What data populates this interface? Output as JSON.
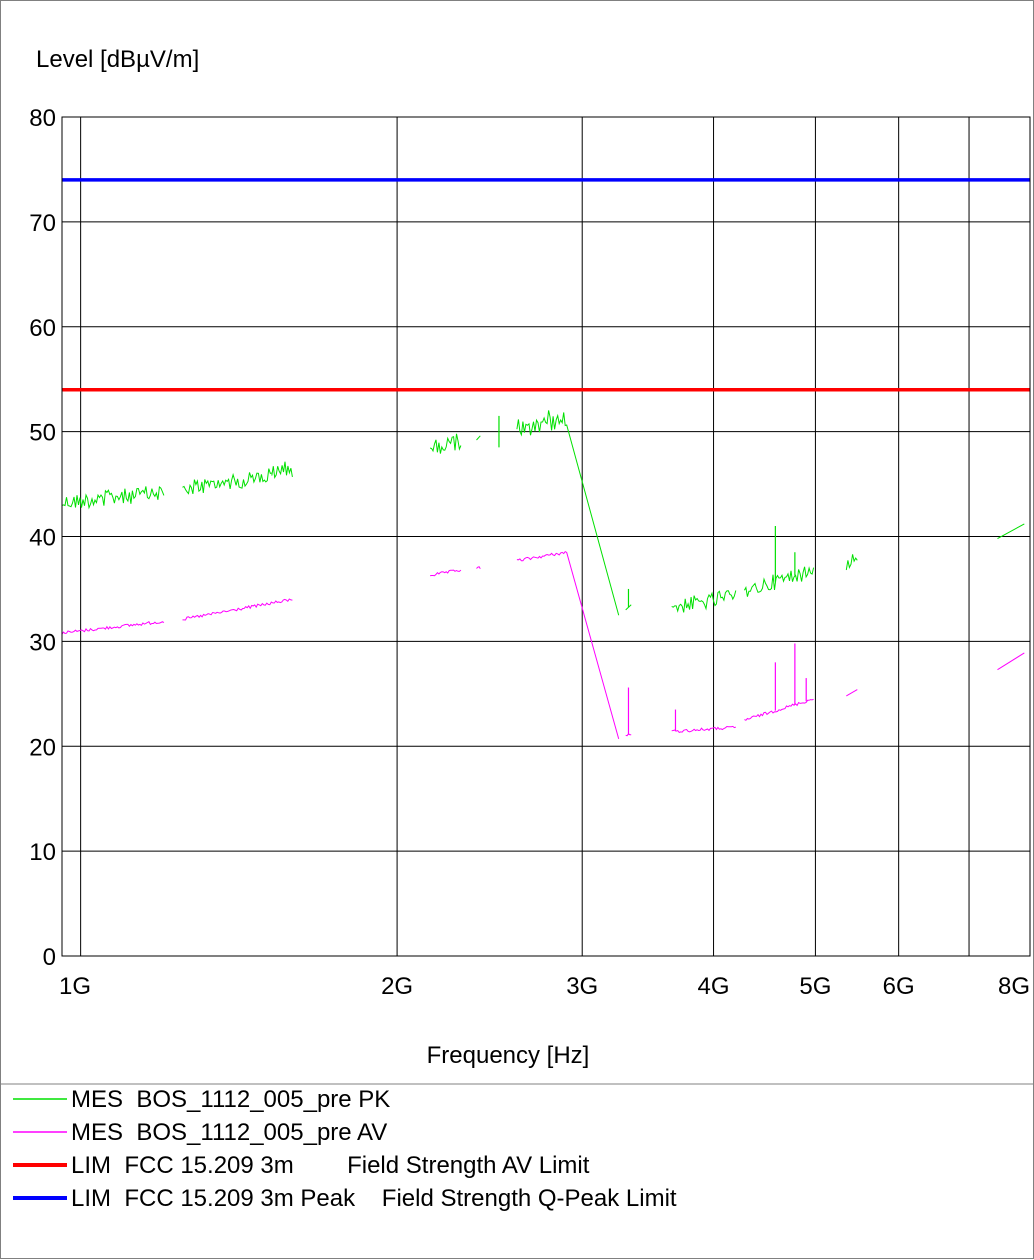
{
  "chart_data": {
    "type": "line",
    "ylabel": "Level [dBµV/m]",
    "xlabel": "Frequency [Hz]",
    "x_scale": "log",
    "xlim": [
      960000000,
      8000000000
    ],
    "ylim": [
      0,
      80
    ],
    "yticks": [
      0,
      10,
      20,
      30,
      40,
      50,
      60,
      70,
      80
    ],
    "xticks": [
      {
        "value": 1000000000,
        "label": "1G"
      },
      {
        "value": 2000000000,
        "label": "2G"
      },
      {
        "value": 3000000000,
        "label": "3G"
      },
      {
        "value": 4000000000,
        "label": "4G"
      },
      {
        "value": 5000000000,
        "label": "5G"
      },
      {
        "value": 6000000000,
        "label": "6G"
      },
      {
        "value": 8000000000,
        "label": "8G"
      }
    ],
    "extra_gridlines_x": [
      7000000000
    ],
    "grid": true,
    "series": [
      {
        "name": "MES  BOS_1112_005_pre PK",
        "color": "#00e000",
        "style": "noisy",
        "segments": [
          [
            [
              960000000,
              43.2
            ],
            [
              1200000000,
              44.2
            ]
          ],
          [
            [
              1250000000,
              44.5
            ],
            [
              1520000000,
              45.8
            ]
          ],
          [
            [
              1520000000,
              46.0
            ],
            [
              1590000000,
              46.4
            ]
          ],
          [
            [
              2150000000,
              48.4
            ],
            [
              2300000000,
              49.1
            ]
          ],
          [
            [
              2380000000,
              49.2
            ],
            [
              2400000000,
              49.6
            ]
          ],
          [
            [
              2600000000,
              49.8
            ],
            [
              2900000000,
              51.2
            ],
            [
              3250000000,
              32.5
            ]
          ],
          [
            [
              3300000000,
              33.0
            ],
            [
              3340000000,
              33.5
            ]
          ],
          [
            [
              3650000000,
              33.3
            ],
            [
              4200000000,
              34.2
            ]
          ],
          [
            [
              4280000000,
              34.8
            ],
            [
              4980000000,
              36.8
            ]
          ],
          [
            [
              5350000000,
              37.5
            ],
            [
              5480000000,
              38.0
            ]
          ],
          [
            [
              7450000000,
              39.8
            ],
            [
              7900000000,
              41.2
            ]
          ]
        ],
        "spikes": [
          {
            "x": 2500000000,
            "y": 51.5
          },
          {
            "x": 3320000000,
            "y": 35.0
          },
          {
            "x": 4580000000,
            "y": 41.0
          },
          {
            "x": 4780000000,
            "y": 38.5
          }
        ]
      },
      {
        "name": "MES  BOS_1112_005_pre AV",
        "color": "#ff00ff",
        "style": "smooth",
        "segments": [
          [
            [
              960000000,
              30.8
            ],
            [
              1200000000,
              31.9
            ]
          ],
          [
            [
              1250000000,
              32.1
            ],
            [
              1590000000,
              34.0
            ]
          ],
          [
            [
              2150000000,
              36.3
            ],
            [
              2300000000,
              36.8
            ]
          ],
          [
            [
              2380000000,
              37.0
            ],
            [
              2400000000,
              37.0
            ]
          ],
          [
            [
              2600000000,
              37.7
            ],
            [
              2900000000,
              38.5
            ],
            [
              3250000000,
              20.7
            ]
          ],
          [
            [
              3300000000,
              21.0
            ],
            [
              3340000000,
              21.2
            ]
          ],
          [
            [
              3650000000,
              21.4
            ],
            [
              4200000000,
              21.8
            ]
          ],
          [
            [
              4280000000,
              22.5
            ],
            [
              4980000000,
              24.5
            ]
          ],
          [
            [
              5350000000,
              24.8
            ],
            [
              5480000000,
              25.4
            ]
          ],
          [
            [
              7450000000,
              27.3
            ],
            [
              7900000000,
              28.9
            ]
          ]
        ],
        "spikes": [
          {
            "x": 3320000000,
            "y": 25.6
          },
          {
            "x": 3680000000,
            "y": 23.5
          },
          {
            "x": 4580000000,
            "y": 28.0
          },
          {
            "x": 4780000000,
            "y": 29.8
          },
          {
            "x": 4900000000,
            "y": 26.5
          }
        ]
      },
      {
        "name": "LIM  FCC 15.209 3m        Field Strength AV Limit",
        "color": "#ff0000",
        "style": "limit",
        "segments": [
          [
            [
              960000000,
              54
            ],
            [
              8000000000,
              54
            ]
          ]
        ]
      },
      {
        "name": "LIM  FCC 15.209 3m Peak    Field Strength Q-Peak Limit",
        "color": "#0000ff",
        "style": "limit",
        "segments": [
          [
            [
              960000000,
              74
            ],
            [
              8000000000,
              74
            ]
          ]
        ]
      }
    ]
  }
}
